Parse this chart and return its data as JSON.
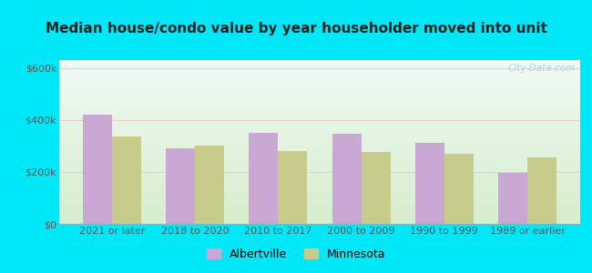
{
  "title": "Median house/condo value by year householder moved into unit",
  "categories": [
    "2021 or later",
    "2018 to 2020",
    "2010 to 2017",
    "2000 to 2009",
    "1990 to 1999",
    "1989 or earlier"
  ],
  "albertville": [
    420000,
    290000,
    350000,
    345000,
    310000,
    195000
  ],
  "minnesota": [
    335000,
    300000,
    280000,
    275000,
    270000,
    255000
  ],
  "bar_color_albertville": "#c9a8d4",
  "bar_color_minnesota": "#c8cc8a",
  "background_outer": "#00e8f8",
  "background_inner_top": "#f0faf5",
  "background_inner_bottom": "#d6edcc",
  "yticks": [
    0,
    200000,
    400000,
    600000
  ],
  "ylim": [
    0,
    630000
  ],
  "bar_width": 0.35,
  "legend_albertville": "Albertville",
  "legend_minnesota": "Minnesota",
  "watermark": "City-Data.com"
}
